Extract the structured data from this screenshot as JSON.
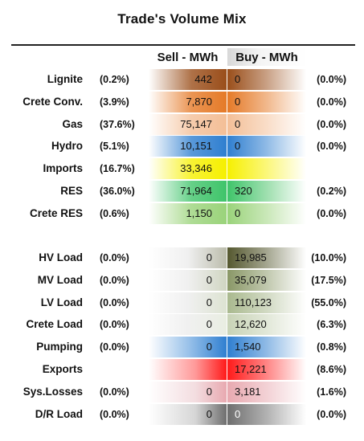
{
  "title": "Trade's Volume Mix",
  "headers": {
    "sell": "Sell - MWh",
    "buy": "Buy - MWh"
  },
  "chart_data": {
    "type": "table",
    "columns": [
      "Sell - MWh",
      "Buy - MWh"
    ],
    "rows": [
      {
        "label": "Lignite",
        "sell": "442",
        "sell_pct": "(0.2%)",
        "buy": "0",
        "buy_pct": "(0.0%)",
        "color": "#9a4e1a"
      },
      {
        "label": "Crete Conv.",
        "sell": "7,870",
        "sell_pct": "(3.9%)",
        "buy": "0",
        "buy_pct": "(0.0%)",
        "color": "#e57a28"
      },
      {
        "label": "Gas",
        "sell": "75,147",
        "sell_pct": "(37.6%)",
        "buy": "0",
        "buy_pct": "(0.0%)",
        "color": "#f4bf97"
      },
      {
        "label": "Hydro",
        "sell": "10,151",
        "sell_pct": "(5.1%)",
        "buy": "0",
        "buy_pct": "(0.0%)",
        "color": "#2f7fd0"
      },
      {
        "label": "Imports",
        "sell": "33,346",
        "sell_pct": "(16.7%)",
        "buy": "",
        "buy_pct": "",
        "color": "#f6f000"
      },
      {
        "label": "RES",
        "sell": "71,964",
        "sell_pct": "(36.0%)",
        "buy": "320",
        "buy_pct": "(0.2%)",
        "color": "#3fc46a"
      },
      {
        "label": "Crete RES",
        "sell": "1,150",
        "sell_pct": "(0.6%)",
        "buy": "0",
        "buy_pct": "(0.0%)",
        "color": "#9ad37a"
      },
      {
        "label": "HV Load",
        "sell": "0",
        "sell_pct": "(0.0%)",
        "buy": "19,985",
        "buy_pct": "(10.0%)",
        "color": "#55582f"
      },
      {
        "label": "MV Load",
        "sell": "0",
        "sell_pct": "(0.0%)",
        "buy": "35,079",
        "buy_pct": "(17.5%)",
        "color": "#8a9867"
      },
      {
        "label": "LV Load",
        "sell": "0",
        "sell_pct": "(0.0%)",
        "buy": "110,123",
        "buy_pct": "(55.0%)",
        "color": "#a9b98e"
      },
      {
        "label": "Crete Load",
        "sell": "0",
        "sell_pct": "(0.0%)",
        "buy": "12,620",
        "buy_pct": "(6.3%)",
        "color": "#c8d3b6"
      },
      {
        "label": "Pumping",
        "sell": "0",
        "sell_pct": "(0.0%)",
        "buy": "1,540",
        "buy_pct": "(0.8%)",
        "color": "#2f7fd0"
      },
      {
        "label": "Exports",
        "sell": "",
        "sell_pct": "",
        "buy": "17,221",
        "buy_pct": "(8.6%)",
        "color": "#ff1a1a"
      },
      {
        "label": "Sys.Losses",
        "sell": "0",
        "sell_pct": "(0.0%)",
        "buy": "3,181",
        "buy_pct": "(1.6%)",
        "color": "#e8a9b0"
      },
      {
        "label": "D/R Load",
        "sell": "0",
        "sell_pct": "(0.0%)",
        "buy": "0",
        "buy_pct": "(0.0%)",
        "color": "#6e6e6e"
      }
    ]
  }
}
